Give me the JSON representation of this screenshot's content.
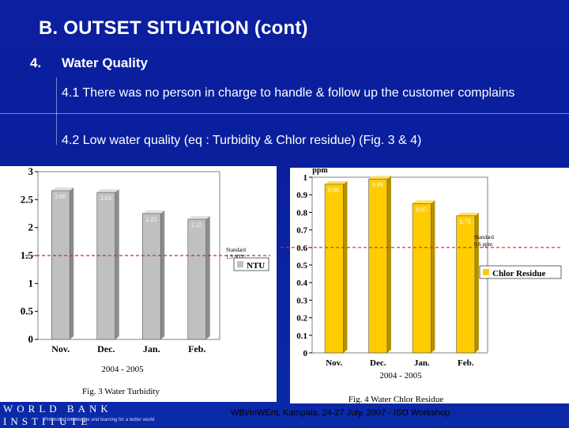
{
  "slide": {
    "title": "B.  OUTSET SITUATION (cont)",
    "section_number": "4.",
    "section_title": "Water Quality",
    "point1": "4.1 There was no person in charge to handle & follow up  the customer complains",
    "point2": "4.2 Low water quality (eq : Turbidity & Chlor residue) (Fig. 3 & 4)",
    "footer": "WBI/InWEnt, Kampala,  24-27 July, 2007 - ISO Workshop",
    "logo_text": "WORLD BANK INSTITUTE",
    "logo_tagline": "Promoting knowledge and learning for a better world"
  },
  "colors": {
    "background": "#0b1fa0",
    "chart_background": "#ffffff",
    "turbidity_bar": "#c0c0c0",
    "chlor_bar": "#ffcc00",
    "standard_line": "#cc3300"
  },
  "chart_data": [
    {
      "type": "bar",
      "categories": [
        "Nov.",
        "Dec.",
        "Jan.",
        "Feb."
      ],
      "values": [
        2.66,
        2.63,
        2.25,
        2.15
      ],
      "ylim": [
        0,
        3
      ],
      "yticks": [
        "0",
        "0.5",
        "1",
        "1.5",
        "2",
        "2.5",
        "3"
      ],
      "legend": "NTU",
      "standard_label": "Standard 1.5 NTU",
      "standard_value": 1.5,
      "xlabel": "2004 - 2005",
      "caption": "Fig. 3 Water Turbidity"
    },
    {
      "type": "bar",
      "categories": [
        "Nov.",
        "Dec.",
        "Jan.",
        "Feb."
      ],
      "values": [
        0.96,
        0.99,
        0.85,
        0.78
      ],
      "ylim": [
        0,
        1
      ],
      "yticks": [
        "0",
        "0.1",
        "0.2",
        "0.3",
        "0.4",
        "0.5",
        "0.6",
        "0.7",
        "0.8",
        "0.9",
        "1"
      ],
      "ylabel": "ppm",
      "legend": "Chlor Residue",
      "standard_label": "Standard 0.6 ppm",
      "standard_value": 0.6,
      "xlabel": "2004 - 2005",
      "caption": "Fig. 4 Water Chlor Residue"
    }
  ]
}
